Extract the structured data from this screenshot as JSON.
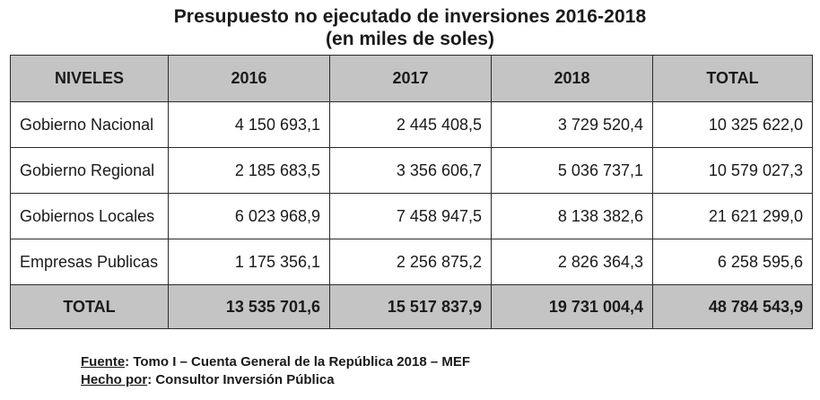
{
  "title": "Presupuesto no ejecutado de inversiones 2016-2018",
  "subtitle": "(en miles de soles)",
  "table": {
    "headers": [
      "NIVELES",
      "2016",
      "2017",
      "2018",
      "TOTAL"
    ],
    "rows": [
      [
        "Gobierno Nacional",
        "4 150 693,1",
        "2 445 408,5",
        "3 729 520,4",
        "10 325 622,0"
      ],
      [
        "Gobierno Regional",
        "2 185 683,5",
        "3 356 606,7",
        "5 036 737,1",
        "10 579 027,3"
      ],
      [
        "Gobiernos Locales",
        "6 023 968,9",
        "7 458 947,5",
        "8 138 382,6",
        "21 621 299,0"
      ],
      [
        "Empresas Publicas",
        "1 175 356,1",
        "2 256 875,2",
        "2 826 364,3",
        "6 258 595,6"
      ]
    ],
    "total": [
      "TOTAL",
      "13 535 701,6",
      "15 517 837,9",
      "19 731 004,4",
      "48 784 543,9"
    ]
  },
  "footer": {
    "source_label": "Fuente",
    "source_text": ": Tomo I – Cuenta General de la República 2018 – MEF",
    "author_label": "Hecho por",
    "author_text": ": Consultor Inversión Pública"
  }
}
